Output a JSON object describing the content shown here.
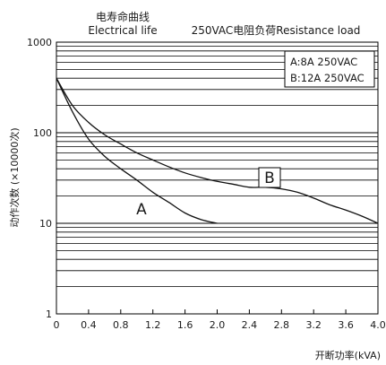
{
  "chart_data": {
    "type": "line",
    "title_cn": "电寿命曲线",
    "title_en": "Electrical life",
    "condition": "250VAC电阻负荷Resistance load",
    "xlabel": "开断功率(kVA)",
    "ylabel": "动作次数 (×10000次)",
    "x_ticks": [
      "0",
      "0.4",
      "0.8",
      "1.2",
      "1.6",
      "2.0",
      "2.4",
      "2.8",
      "3.2",
      "3.6",
      "4.0"
    ],
    "y_ticks": [
      "1",
      "10",
      "100",
      "1000"
    ],
    "xlim": [
      0,
      4.0
    ],
    "ylim": [
      1,
      1000
    ],
    "y_scale": "log",
    "grid": true,
    "legend": {
      "position": "top-right",
      "lines": [
        "A:8A 250VAC",
        "B:12A 250VAC"
      ]
    },
    "series": [
      {
        "name": "A",
        "x": [
          0,
          0.2,
          0.4,
          0.6,
          0.8,
          1.0,
          1.2,
          1.4,
          1.6,
          1.8,
          2.0
        ],
        "y": [
          400,
          170,
          85,
          55,
          40,
          30,
          22,
          17,
          13,
          11,
          10
        ]
      },
      {
        "name": "B",
        "x": [
          0,
          0.2,
          0.4,
          0.6,
          0.8,
          1.0,
          1.2,
          1.4,
          1.6,
          1.8,
          2.0,
          2.2,
          2.4,
          2.6,
          2.8,
          3.0,
          3.2,
          3.4,
          3.6,
          3.8,
          4.0
        ],
        "y": [
          400,
          200,
          130,
          95,
          75,
          60,
          50,
          42,
          36,
          32,
          29,
          27,
          25,
          25,
          24,
          22,
          19,
          16,
          14,
          12,
          10
        ]
      }
    ]
  }
}
